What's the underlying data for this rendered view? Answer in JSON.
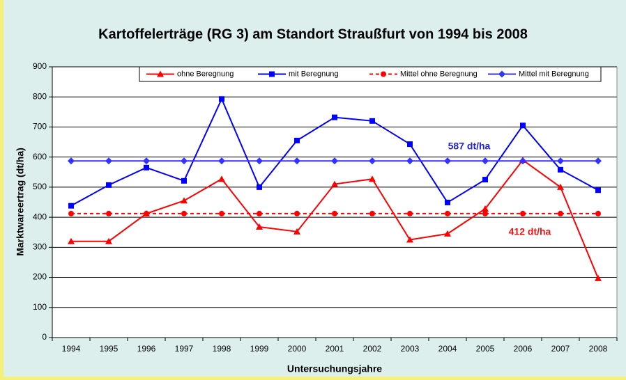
{
  "chart_data": {
    "type": "line",
    "title": "Kartoffelerträge (RG 3) am Standort Straußfurt von 1994 bis 2008",
    "x_label": "Untersuchungsjahre",
    "y_label": "Marktwareertrag (dt/ha)",
    "categories": [
      "1994",
      "1995",
      "1996",
      "1997",
      "1998",
      "1999",
      "2000",
      "2001",
      "2002",
      "2003",
      "2004",
      "2005",
      "2006",
      "2007",
      "2008"
    ],
    "ylim": [
      0,
      900
    ],
    "yticks": [
      0,
      100,
      200,
      300,
      400,
      500,
      600,
      700,
      800,
      900
    ],
    "grid": true,
    "legend": "top",
    "series": [
      {
        "name": "ohne Beregnung",
        "color": "#ff0000",
        "marker": "triangle",
        "dashed": false,
        "values": [
          320,
          320,
          412,
          455,
          527,
          368,
          352,
          510,
          527,
          325,
          345,
          428,
          590,
          500,
          197
        ]
      },
      {
        "name": "mit Beregnung",
        "color": "#0000ff",
        "marker": "square",
        "dashed": false,
        "values": [
          438,
          507,
          565,
          521,
          793,
          500,
          655,
          732,
          720,
          643,
          449,
          525,
          705,
          558,
          490
        ]
      },
      {
        "name": "Mittel ohne Beregnung",
        "color": "#ff0000",
        "marker": "circle",
        "dashed": true,
        "values": [
          412,
          412,
          412,
          412,
          412,
          412,
          412,
          412,
          412,
          412,
          412,
          412,
          412,
          412,
          412
        ]
      },
      {
        "name": "Mittel mit Beregnung",
        "color": "#3333ff",
        "marker": "diamond",
        "dashed": false,
        "values": [
          587,
          587,
          587,
          587,
          587,
          587,
          587,
          587,
          587,
          587,
          587,
          587,
          587,
          587,
          587
        ]
      }
    ],
    "annotations": [
      {
        "text": "587 dt/ha",
        "color": "#2222dd"
      },
      {
        "text": "412 dt/ha",
        "color": "#ee1111"
      }
    ]
  }
}
